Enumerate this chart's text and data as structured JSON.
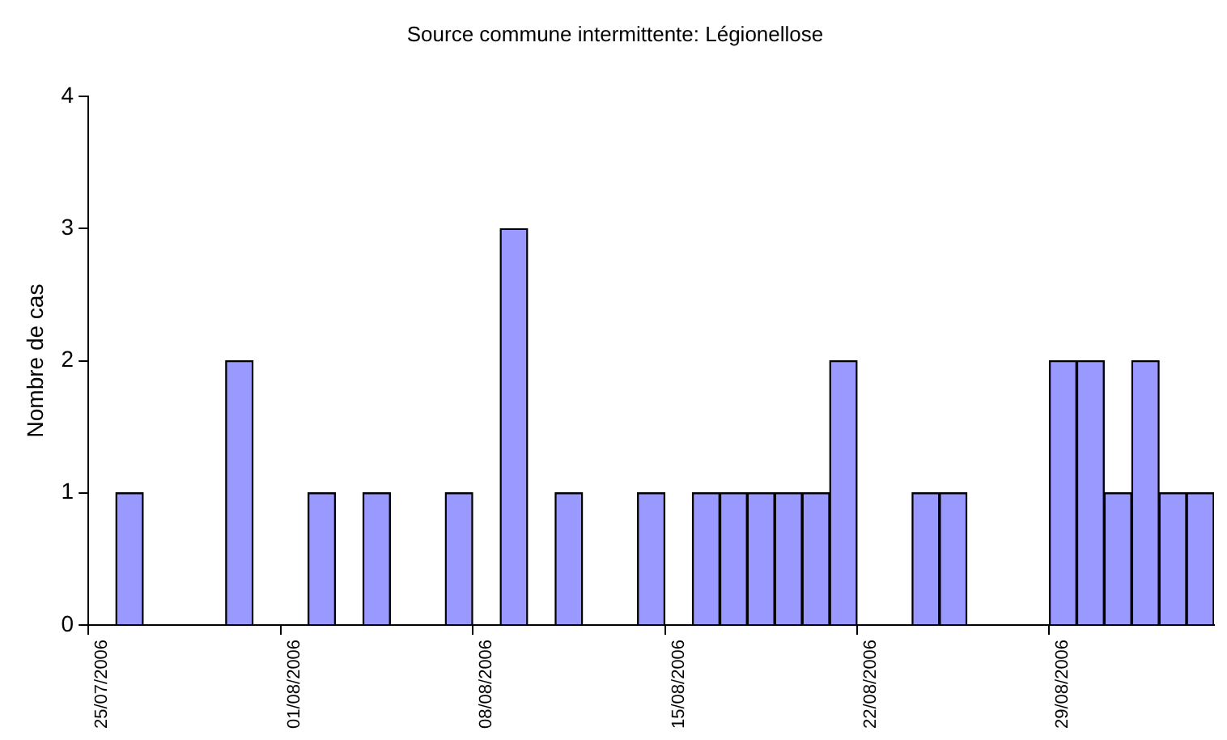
{
  "chart_data": {
    "type": "bar",
    "title": "Source commune intermittente: Légionellose",
    "ylabel": "Nombre de cas",
    "categories": [
      "25/07/2006",
      null,
      null,
      null,
      null,
      null,
      null,
      "01/08/2006",
      null,
      null,
      null,
      null,
      null,
      null,
      "08/08/2006",
      null,
      null,
      null,
      null,
      null,
      null,
      "15/08/2006",
      null,
      null,
      null,
      null,
      null,
      null,
      "22/08/2006",
      null,
      null,
      null,
      null,
      null,
      null,
      "29/08/2006",
      null,
      null,
      null,
      null,
      null
    ],
    "values": [
      0,
      1,
      0,
      0,
      0,
      2,
      0,
      0,
      1,
      0,
      1,
      0,
      0,
      1,
      0,
      3,
      0,
      1,
      0,
      0,
      1,
      0,
      1,
      1,
      1,
      1,
      1,
      2,
      0,
      0,
      1,
      1,
      0,
      0,
      0,
      2,
      2,
      1,
      2,
      1,
      1
    ],
    "color": "#9999ff",
    "ylim": [
      0,
      4
    ],
    "yticks": [
      0,
      1,
      2,
      3,
      4
    ],
    "grid": false,
    "legend": false
  }
}
